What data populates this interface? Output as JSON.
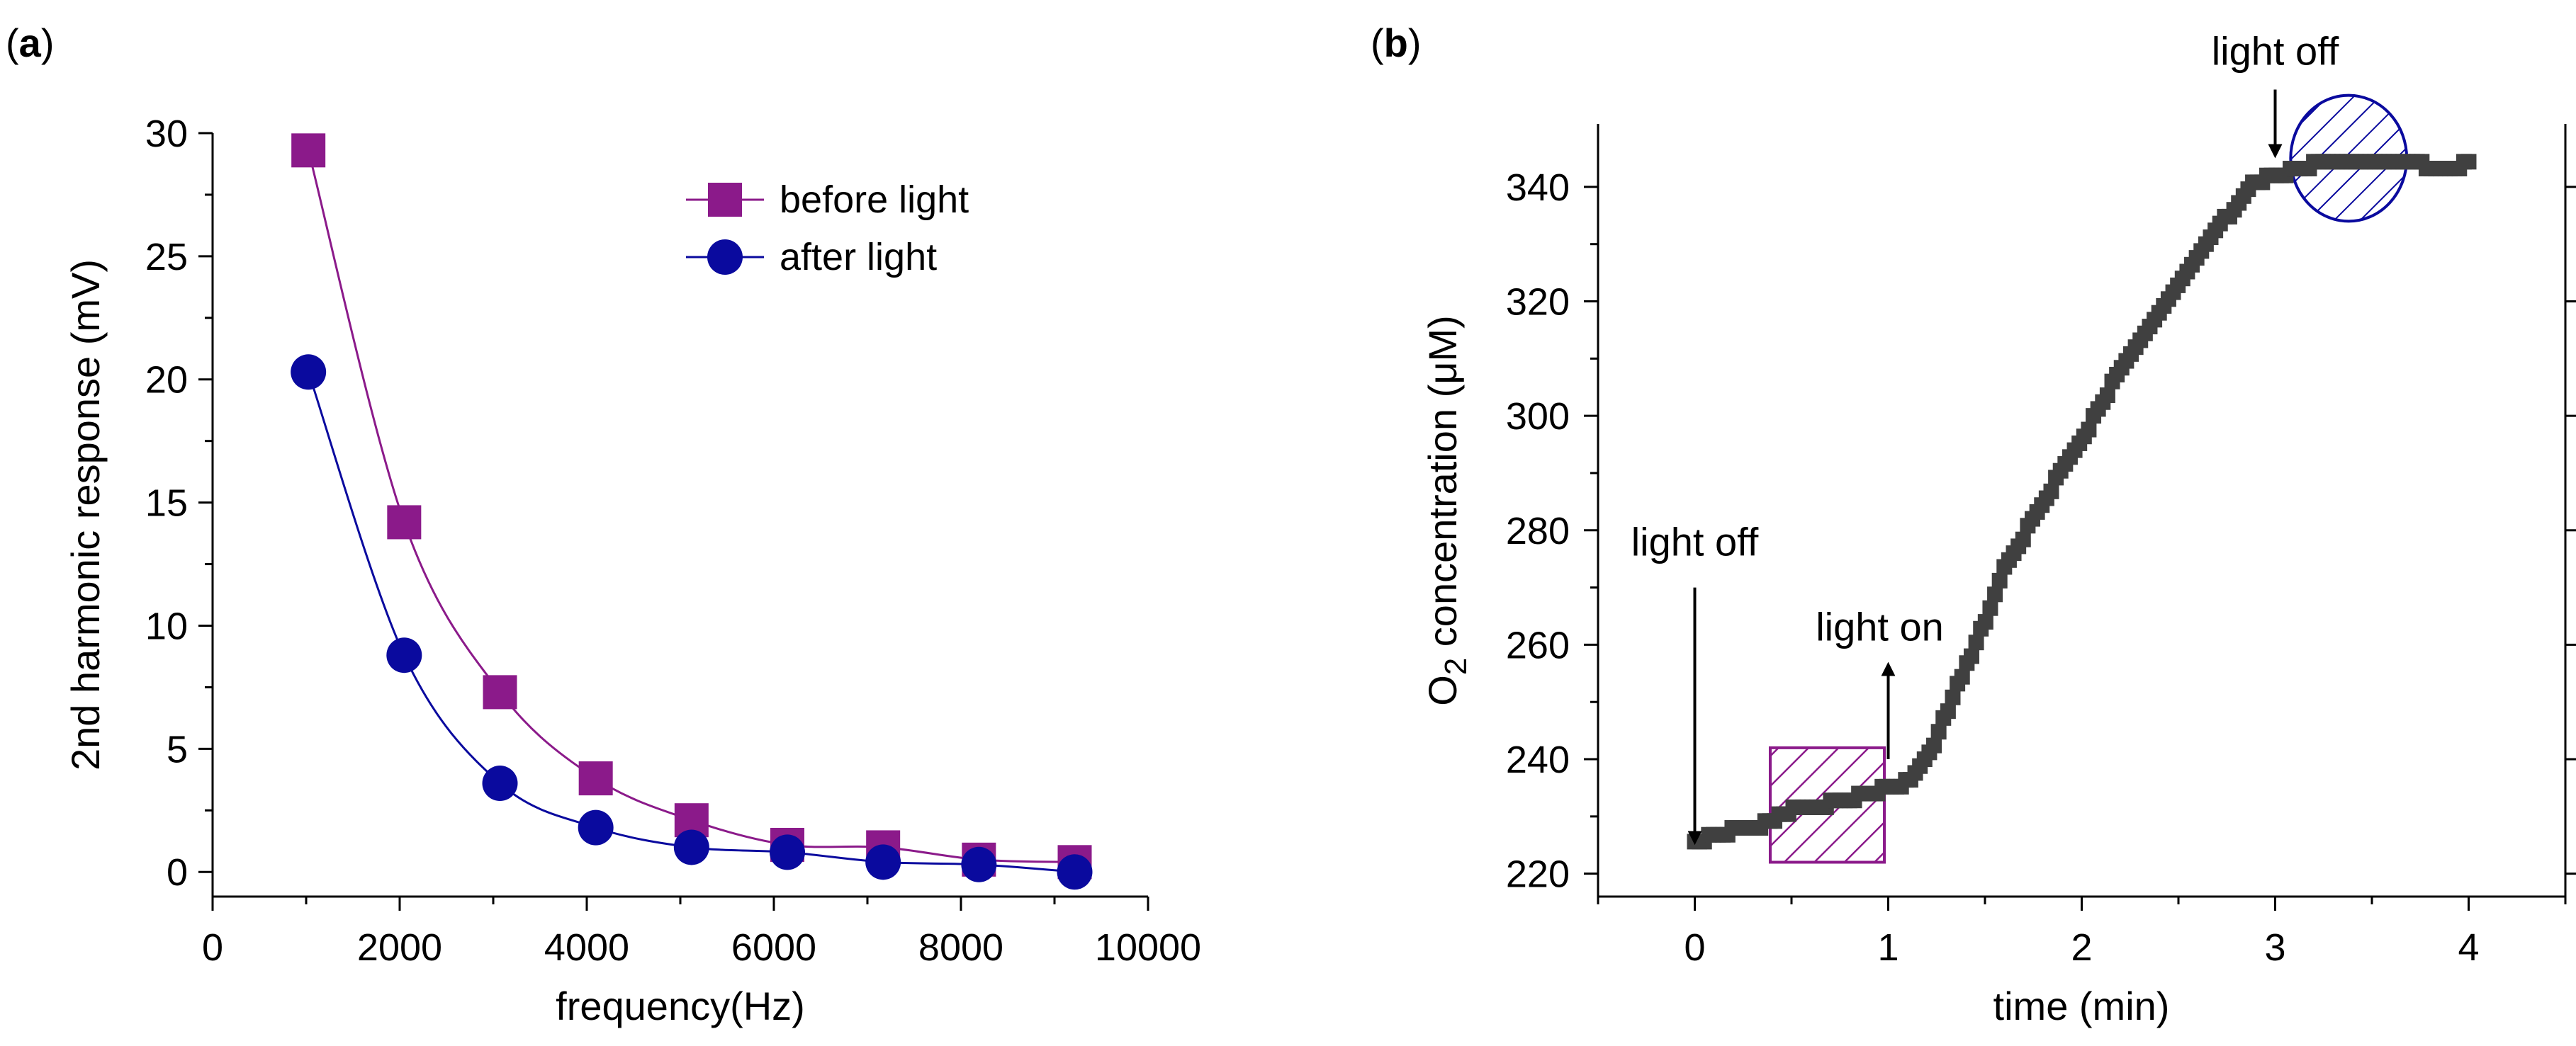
{
  "chart_data": [
    {
      "panel": "(a)",
      "panel_letter": "a",
      "type": "line",
      "xlabel": "frequency(Hz)",
      "ylabel": "2nd harmonic response (mV)",
      "xlim": [
        0,
        10000
      ],
      "ylim": [
        -1,
        30
      ],
      "xticks": [
        0,
        2000,
        4000,
        6000,
        8000,
        10000
      ],
      "yticks": [
        0,
        5,
        10,
        15,
        20,
        25,
        30
      ],
      "legend_position": "top-right",
      "series": [
        {
          "name": "before light",
          "color": "#8B1A8A",
          "marker": "square",
          "x": [
            1024,
            2048,
            3072,
            4096,
            5120,
            6144,
            7168,
            8192,
            9216
          ],
          "values": [
            29.3,
            14.2,
            7.3,
            3.8,
            2.1,
            1.1,
            1.0,
            0.5,
            0.4
          ]
        },
        {
          "name": "after light",
          "color": "#0A0A9E",
          "marker": "circle",
          "x": [
            1024,
            2048,
            3072,
            4096,
            5120,
            6144,
            7168,
            8192,
            9216
          ],
          "values": [
            20.3,
            8.8,
            3.6,
            1.8,
            1.0,
            0.8,
            0.4,
            0.3,
            0.0
          ]
        }
      ]
    },
    {
      "panel": "(b)",
      "panel_letter": "b",
      "type": "scatter",
      "xlabel": "time (min)",
      "ylabel_main": "O",
      "ylabel_sub": "2",
      "ylabel_rest": " concentration (",
      "ylabel_mu": "μ",
      "ylabel_end": "M)",
      "xlim": [
        -0.5,
        4.5
      ],
      "ylim": [
        216,
        351
      ],
      "xticks": [
        0,
        1,
        2,
        3,
        4
      ],
      "yticks": [
        220,
        240,
        260,
        280,
        300,
        320,
        340
      ],
      "series": [
        {
          "name": "O2 concentration",
          "color": "#404040",
          "marker": "square",
          "x_start": 0.0,
          "x_end": 4.0,
          "anchors_x": [
            0.0,
            0.1,
            0.3,
            0.5,
            0.8,
            1.0,
            1.1,
            1.2,
            1.3,
            1.4,
            1.5,
            1.6,
            1.8,
            2.0,
            2.2,
            2.4,
            2.6,
            2.8,
            2.9,
            3.0,
            3.2,
            3.4,
            3.5,
            3.7,
            3.8,
            4.0
          ],
          "anchors_y": [
            225,
            227,
            228,
            231,
            233,
            235,
            236,
            240,
            248,
            256,
            264,
            273,
            285,
            296,
            308,
            318,
            328,
            337,
            341,
            342,
            344,
            345,
            344,
            345,
            343,
            344
          ]
        }
      ],
      "annotations": [
        {
          "text": "light off",
          "x": 0.0,
          "y_from": 270,
          "y_to": 225
        },
        {
          "text": "light on",
          "x": 1.0,
          "y_from": 240,
          "y_to": 257
        },
        {
          "text": "light off",
          "x": 3.0,
          "y_from": 357,
          "y_to": 345
        }
      ],
      "regions": [
        {
          "shape": "rectangle",
          "color": "#8B1A8A",
          "x0": 0.39,
          "x1": 0.98,
          "y0": 222,
          "y1": 242
        },
        {
          "shape": "circle",
          "color": "#0A0A9E",
          "cx": 3.38,
          "cy": 345,
          "rx": 0.3,
          "ry": 11
        }
      ]
    }
  ]
}
